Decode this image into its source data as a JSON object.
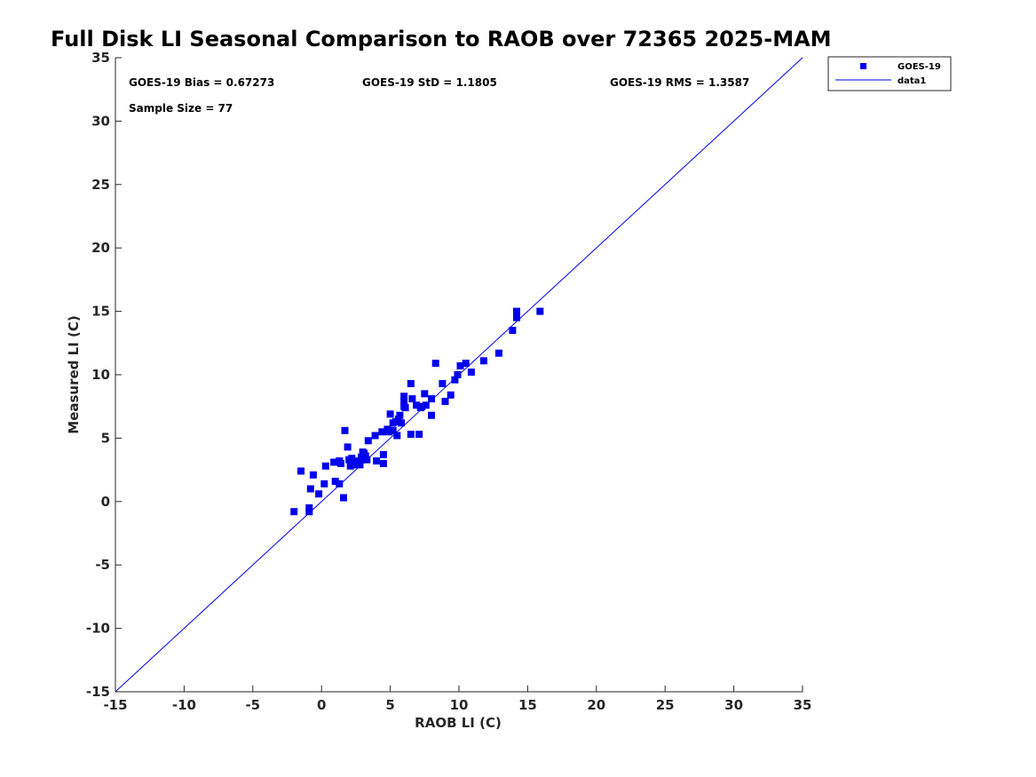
{
  "chart_data": {
    "type": "scatter",
    "title": "Full Disk LI Seasonal Comparison to RAOB over 72365 2025-MAM",
    "xlabel": "RAOB LI (C)",
    "ylabel": "Measured LI (C)",
    "xlim": [
      -15,
      35
    ],
    "ylim": [
      -15,
      35
    ],
    "xticks": [
      "-15",
      "-10",
      "-5",
      "0",
      "5",
      "10",
      "15",
      "20",
      "25",
      "30",
      "35"
    ],
    "yticks": [
      "-15",
      "-10",
      "-5",
      "0",
      "5",
      "10",
      "15",
      "20",
      "25",
      "30",
      "35"
    ],
    "grid": false,
    "legend_position": "outside-top-right",
    "annotations": {
      "bias": "GOES-19 Bias = 0.67273",
      "std": "GOES-19 StD = 1.1805",
      "rms": "GOES-19 RMS = 1.3587",
      "sample": "Sample Size = 77"
    },
    "series": [
      {
        "name": "GOES-19",
        "kind": "scatter",
        "marker": "square",
        "color": "#0000ee",
        "points": [
          [
            -2.0,
            -0.8
          ],
          [
            -1.5,
            2.4
          ],
          [
            -0.9,
            -0.5
          ],
          [
            -0.9,
            -0.8
          ],
          [
            -0.8,
            1.0
          ],
          [
            -0.6,
            2.1
          ],
          [
            -0.2,
            0.6
          ],
          [
            0.2,
            1.4
          ],
          [
            0.3,
            2.8
          ],
          [
            0.9,
            3.1
          ],
          [
            1.0,
            1.6
          ],
          [
            1.3,
            3.2
          ],
          [
            1.3,
            1.4
          ],
          [
            1.4,
            3.0
          ],
          [
            1.6,
            0.3
          ],
          [
            1.7,
            5.6
          ],
          [
            1.9,
            4.3
          ],
          [
            2.0,
            3.3
          ],
          [
            2.1,
            2.8
          ],
          [
            2.2,
            3.4
          ],
          [
            2.4,
            3.0
          ],
          [
            2.6,
            3.2
          ],
          [
            2.8,
            2.9
          ],
          [
            2.9,
            3.5
          ],
          [
            3.0,
            3.3
          ],
          [
            3.1,
            3.8
          ],
          [
            3.2,
            3.6
          ],
          [
            3.3,
            3.3
          ],
          [
            3.4,
            4.8
          ],
          [
            3.9,
            5.2
          ],
          [
            4.0,
            3.2
          ],
          [
            4.4,
            5.5
          ],
          [
            4.5,
            3.0
          ],
          [
            4.5,
            3.7
          ],
          [
            4.8,
            5.7
          ],
          [
            5.0,
            6.9
          ],
          [
            5.2,
            5.6
          ],
          [
            5.4,
            6.3
          ],
          [
            5.5,
            5.2
          ],
          [
            5.6,
            6.5
          ],
          [
            5.7,
            6.8
          ],
          [
            5.8,
            6.2
          ],
          [
            6.0,
            8.3
          ],
          [
            6.0,
            7.9
          ],
          [
            6.1,
            7.4
          ],
          [
            6.5,
            9.3
          ],
          [
            6.5,
            5.3
          ],
          [
            6.6,
            8.1
          ],
          [
            6.9,
            7.6
          ],
          [
            7.1,
            5.3
          ],
          [
            7.2,
            7.4
          ],
          [
            7.5,
            8.5
          ],
          [
            7.6,
            7.6
          ],
          [
            8.0,
            8.1
          ],
          [
            8.0,
            6.8
          ],
          [
            8.3,
            10.9
          ],
          [
            8.8,
            9.3
          ],
          [
            9.0,
            7.9
          ],
          [
            9.4,
            8.4
          ],
          [
            9.7,
            9.6
          ],
          [
            9.9,
            10.0
          ],
          [
            10.1,
            10.7
          ],
          [
            10.5,
            10.9
          ],
          [
            10.9,
            10.2
          ],
          [
            11.8,
            11.1
          ],
          [
            12.9,
            11.7
          ],
          [
            13.9,
            13.5
          ],
          [
            14.2,
            14.5
          ],
          [
            14.2,
            15.0
          ],
          [
            15.9,
            15.0
          ],
          [
            2.3,
            3.1
          ],
          [
            3.0,
            3.9
          ],
          [
            5.2,
            6.2
          ],
          [
            6.0,
            7.5
          ],
          [
            7.3,
            7.5
          ],
          [
            2.6,
            2.9
          ],
          [
            4.9,
            5.5
          ]
        ]
      },
      {
        "name": "data1",
        "kind": "line",
        "color": "#0000ee",
        "x": [
          -15,
          35
        ],
        "y": [
          -15,
          35
        ]
      }
    ]
  }
}
